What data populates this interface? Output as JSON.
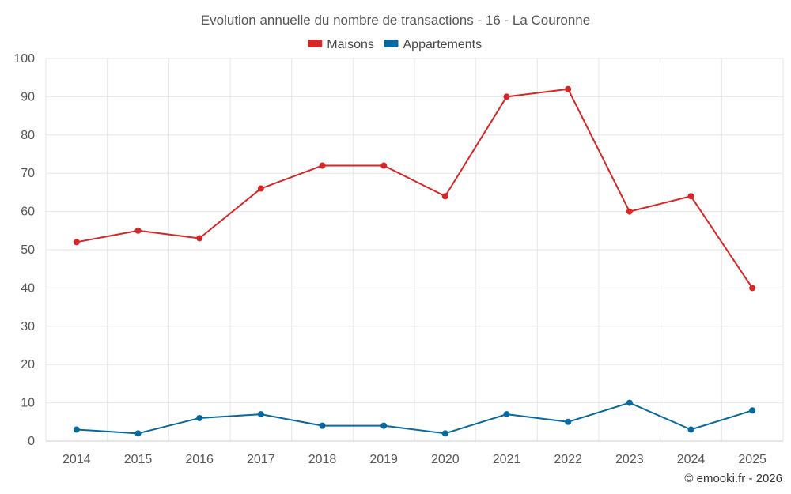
{
  "chart_data": {
    "type": "line",
    "title": "Evolution annuelle du nombre de transactions - 16 - La Couronne",
    "categories": [
      "2014",
      "2015",
      "2016",
      "2017",
      "2018",
      "2019",
      "2020",
      "2021",
      "2022",
      "2023",
      "2024",
      "2025"
    ],
    "series": [
      {
        "name": "Maisons",
        "color": "#d62728",
        "values": [
          52,
          55,
          53,
          66,
          72,
          72,
          64,
          90,
          92,
          60,
          64,
          40
        ]
      },
      {
        "name": "Appartements",
        "color": "#08679c",
        "values": [
          3,
          2,
          6,
          7,
          4,
          4,
          2,
          7,
          5,
          10,
          3,
          8
        ]
      }
    ],
    "ylim": [
      0,
      100
    ],
    "yticks": [
      "0",
      "10",
      "20",
      "30",
      "40",
      "50",
      "60",
      "70",
      "80",
      "90",
      "100"
    ],
    "xlabel": "",
    "ylabel": "",
    "grid": true,
    "legend_position": "top-center"
  },
  "credit": "© emooki.fr - 2026"
}
